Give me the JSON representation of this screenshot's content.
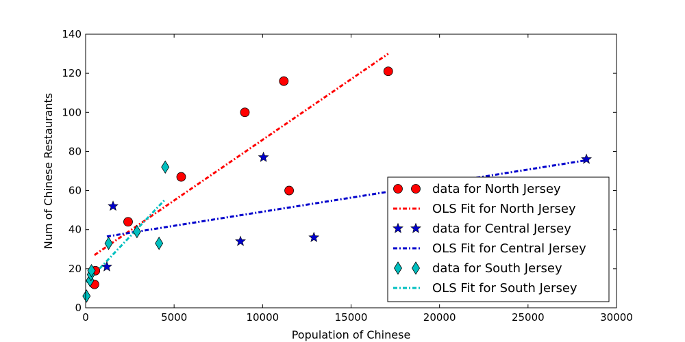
{
  "chart_data": {
    "type": "scatter",
    "title": "",
    "xlabel": "Population of Chinese",
    "ylabel": "Num of Chinese Restaurants",
    "xlim": [
      0,
      30000
    ],
    "ylim": [
      0,
      140
    ],
    "xticks": [
      0,
      5000,
      10000,
      15000,
      20000,
      25000,
      30000
    ],
    "yticks": [
      0,
      20,
      40,
      60,
      80,
      100,
      120,
      140
    ],
    "grid": false,
    "legend_position": "lower-right",
    "series": [
      {
        "name": "data for North Jersey",
        "kind": "scatter",
        "marker": "circle",
        "color": "#ff0000",
        "points": [
          [
            500,
            12
          ],
          [
            550,
            19
          ],
          [
            2400,
            44
          ],
          [
            5400,
            67
          ],
          [
            9000,
            100
          ],
          [
            11200,
            116
          ],
          [
            11500,
            60
          ],
          [
            17100,
            121
          ]
        ]
      },
      {
        "name": "OLS Fit for North Jersey",
        "kind": "line",
        "style": "dashdot",
        "color": "#ff0000",
        "points": [
          [
            500,
            27
          ],
          [
            17100,
            130
          ]
        ]
      },
      {
        "name": "data for Central Jersey",
        "kind": "scatter",
        "marker": "star",
        "color": "#0000cc",
        "points": [
          [
            1200,
            21
          ],
          [
            1550,
            52
          ],
          [
            8750,
            34
          ],
          [
            10050,
            77
          ],
          [
            12900,
            36
          ],
          [
            28300,
            76
          ]
        ]
      },
      {
        "name": "OLS Fit for Central Jersey",
        "kind": "line",
        "style": "dashdot",
        "color": "#0000cc",
        "points": [
          [
            1200,
            36.5
          ],
          [
            28300,
            75.5
          ]
        ]
      },
      {
        "name": "data for South Jersey",
        "kind": "scatter",
        "marker": "diamond",
        "color": "#00bfbf",
        "points": [
          [
            50,
            6
          ],
          [
            250,
            14
          ],
          [
            300,
            17
          ],
          [
            330,
            19
          ],
          [
            1300,
            33
          ],
          [
            2900,
            39
          ],
          [
            4150,
            33
          ],
          [
            4500,
            72
          ]
        ]
      },
      {
        "name": "OLS Fit for South Jersey",
        "kind": "line",
        "style": "dashdot",
        "color": "#00bfbf",
        "points": [
          [
            50,
            13
          ],
          [
            4500,
            55.5
          ]
        ]
      }
    ]
  }
}
